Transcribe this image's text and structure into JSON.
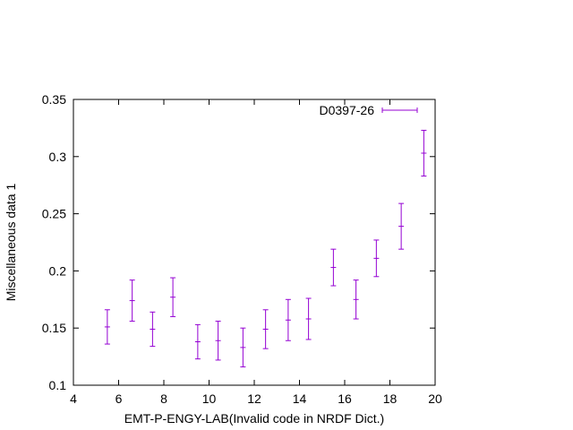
{
  "chart_data": {
    "type": "scatter",
    "title": "",
    "xlabel": "EMT-P-ENGY-LAB(Invalid code in NRDF Dict.)",
    "ylabel": "Miscellaneous data 1",
    "xlim": [
      4,
      20
    ],
    "ylim": [
      0.1,
      0.35
    ],
    "xticks": [
      "4",
      "6",
      "8",
      "10",
      "12",
      "14",
      "16",
      "18",
      "20"
    ],
    "yticks": [
      "0.1",
      "0.15",
      "0.2",
      "0.25",
      "0.3",
      "0.35"
    ],
    "grid": false,
    "legend_position": "top-right",
    "series": [
      {
        "name": "D0397-26",
        "color": "#9400d3",
        "points": [
          {
            "x": 5.5,
            "y": 0.151,
            "yerr": 0.015
          },
          {
            "x": 6.6,
            "y": 0.174,
            "yerr": 0.018
          },
          {
            "x": 7.5,
            "y": 0.149,
            "yerr": 0.015
          },
          {
            "x": 8.4,
            "y": 0.177,
            "yerr": 0.017
          },
          {
            "x": 9.5,
            "y": 0.138,
            "yerr": 0.015
          },
          {
            "x": 10.4,
            "y": 0.139,
            "yerr": 0.017
          },
          {
            "x": 11.5,
            "y": 0.133,
            "yerr": 0.017
          },
          {
            "x": 12.5,
            "y": 0.149,
            "yerr": 0.017
          },
          {
            "x": 13.5,
            "y": 0.157,
            "yerr": 0.018
          },
          {
            "x": 14.4,
            "y": 0.158,
            "yerr": 0.018
          },
          {
            "x": 15.5,
            "y": 0.203,
            "yerr": 0.016
          },
          {
            "x": 16.5,
            "y": 0.175,
            "yerr": 0.017
          },
          {
            "x": 17.4,
            "y": 0.211,
            "yerr": 0.016
          },
          {
            "x": 18.5,
            "y": 0.239,
            "yerr": 0.02
          },
          {
            "x": 19.5,
            "y": 0.303,
            "yerr": 0.02
          }
        ]
      }
    ]
  }
}
